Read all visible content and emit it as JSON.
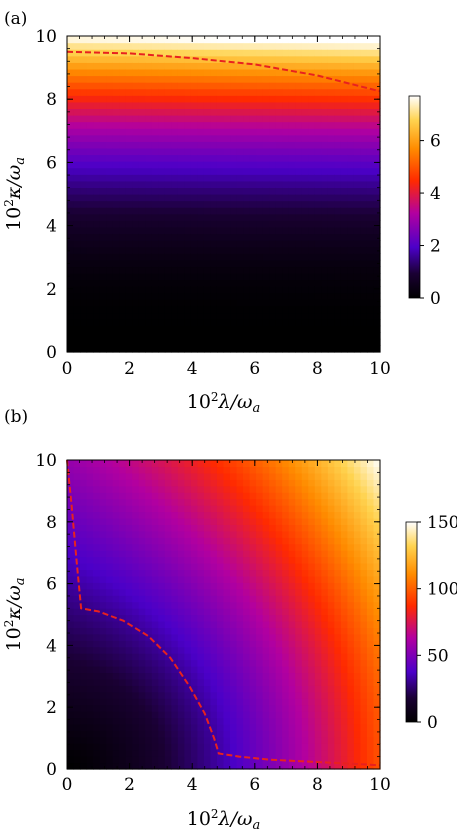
{
  "chart_data": [
    {
      "type": "heatmap",
      "panel_label": "(a)",
      "xlabel": "10^2 λ/ω_a",
      "ylabel": "10^2 κ/ω_a",
      "x_ticks": [
        0,
        2,
        4,
        6,
        8,
        10
      ],
      "y_ticks": [
        0,
        2,
        4,
        6,
        8,
        10
      ],
      "xlim": [
        0,
        10
      ],
      "ylim": [
        0,
        10
      ],
      "colorbar": {
        "ticks": [
          0,
          2,
          4,
          6
        ],
        "range": [
          0,
          7.7
        ]
      },
      "colormap": [
        "#000000",
        "#1a0033",
        "#4b00c8",
        "#b200a0",
        "#ff2a00",
        "#ff8c00",
        "#ffd34f",
        "#ffffff"
      ],
      "boundary_color": "#e8211f",
      "boundary_curve": {
        "x": [
          0,
          2,
          4,
          6,
          8,
          10
        ],
        "y": [
          9.5,
          9.45,
          9.3,
          9.1,
          8.75,
          8.25
        ]
      }
    },
    {
      "type": "heatmap",
      "panel_label": "(b)",
      "xlabel": "10^2 λ/ω_a",
      "ylabel": "10^2 κ/ω_a",
      "x_ticks": [
        0,
        2,
        4,
        6,
        8,
        10
      ],
      "y_ticks": [
        0,
        2,
        4,
        6,
        8,
        10
      ],
      "xlim": [
        0,
        10
      ],
      "ylim": [
        0,
        10
      ],
      "colorbar": {
        "ticks": [
          0,
          50,
          100,
          150
        ],
        "range": [
          0,
          150
        ]
      },
      "colormap": [
        "#000000",
        "#1a0033",
        "#4b00c8",
        "#b200a0",
        "#ff2a00",
        "#ff8c00",
        "#ffd34f",
        "#ffffff"
      ],
      "boundary_color": "#e8211f",
      "boundary_curve": {
        "x": [
          0.0,
          0.15,
          0.3,
          0.45,
          1.0,
          1.8,
          2.6,
          3.3,
          3.9,
          4.4,
          4.7,
          4.85,
          5.5,
          6.5,
          7.5,
          8.5,
          9.5,
          10.0
        ],
        "y": [
          10.0,
          8.5,
          6.8,
          5.2,
          5.1,
          4.8,
          4.3,
          3.6,
          2.7,
          1.8,
          1.0,
          0.5,
          0.4,
          0.3,
          0.25,
          0.2,
          0.15,
          0.12
        ]
      }
    }
  ]
}
